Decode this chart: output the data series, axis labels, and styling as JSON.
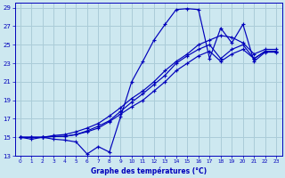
{
  "xlabel": "Graphe des températures (°C)",
  "background_color": "#cde8f0",
  "grid_color": "#aaccd8",
  "line_color": "#0000bb",
  "xlim": [
    -0.5,
    23.5
  ],
  "ylim": [
    13,
    29.5
  ],
  "xticks": [
    0,
    1,
    2,
    3,
    4,
    5,
    6,
    7,
    8,
    9,
    10,
    11,
    12,
    13,
    14,
    15,
    16,
    17,
    18,
    19,
    20,
    21,
    22,
    23
  ],
  "yticks": [
    13,
    15,
    17,
    19,
    21,
    23,
    25,
    27,
    29
  ],
  "series": [
    [
      15.0,
      14.8,
      15.0,
      14.8,
      14.7,
      14.5,
      13.2,
      14.0,
      13.4,
      17.2,
      21.0,
      23.2,
      25.5,
      27.2,
      28.8,
      28.9,
      28.8,
      23.5,
      26.8,
      25.2,
      27.2,
      23.2,
      24.2,
      24.2
    ],
    [
      15.0,
      15.0,
      15.0,
      15.1,
      15.1,
      15.3,
      15.6,
      16.0,
      16.7,
      17.5,
      18.3,
      19.0,
      20.0,
      21.0,
      22.2,
      23.0,
      23.8,
      24.3,
      23.2,
      24.0,
      24.5,
      23.5,
      24.3,
      24.3
    ],
    [
      15.0,
      15.0,
      15.0,
      15.2,
      15.3,
      15.6,
      16.0,
      16.5,
      17.3,
      18.2,
      19.2,
      20.0,
      21.0,
      22.2,
      23.2,
      24.0,
      25.0,
      25.5,
      26.0,
      25.8,
      25.2,
      24.0,
      24.5,
      24.5
    ],
    [
      15.0,
      15.0,
      15.0,
      15.1,
      15.1,
      15.3,
      15.7,
      16.2,
      16.8,
      17.8,
      18.8,
      19.7,
      20.7,
      21.7,
      23.0,
      23.8,
      24.5,
      25.0,
      23.5,
      24.5,
      25.0,
      23.5,
      24.3,
      24.3
    ]
  ]
}
